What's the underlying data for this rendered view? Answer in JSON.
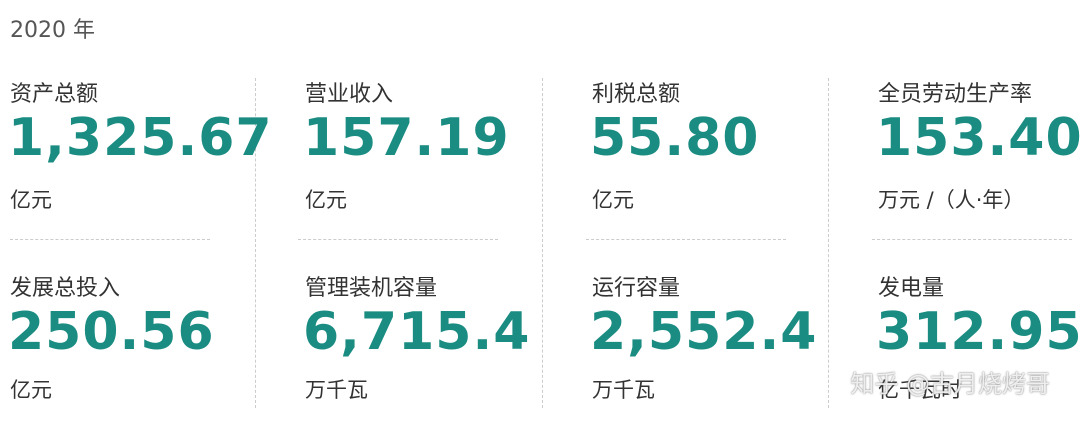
{
  "header": {
    "year_label": "2020 年"
  },
  "metrics": [
    {
      "label": "资产总额",
      "value": "1,325.67",
      "unit": "亿元"
    },
    {
      "label": "营业收入",
      "value": "157.19",
      "unit": "亿元"
    },
    {
      "label": "利税总额",
      "value": "55.80",
      "unit": "亿元"
    },
    {
      "label": "全员劳动生产率",
      "value": "153.40",
      "unit": "万元 /（人·年）"
    },
    {
      "label": "发展总投入",
      "value": "250.56",
      "unit": "亿元"
    },
    {
      "label": "管理装机容量",
      "value": "6,715.4",
      "unit": "万千瓦"
    },
    {
      "label": "运行容量",
      "value": "2,552.4",
      "unit": "万千瓦"
    },
    {
      "label": "发电量",
      "value": "312.95",
      "unit": "亿千瓦时"
    }
  ],
  "watermark": {
    "text": "知乎 @古月烧烤哥"
  },
  "colors": {
    "value": "#1a8c82",
    "label": "#333333",
    "separator": "#cccccc"
  }
}
